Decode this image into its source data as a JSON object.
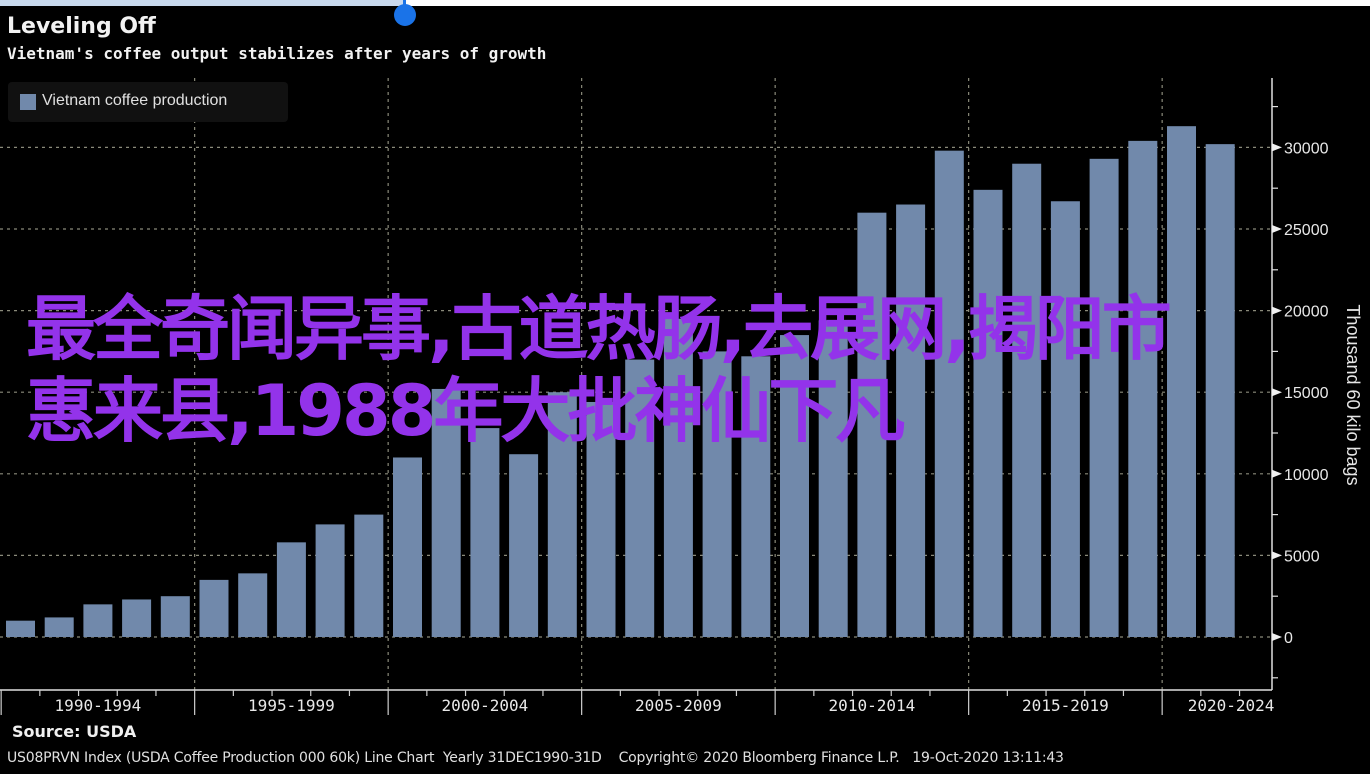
{
  "header": {
    "title": "Leveling Off",
    "subtitle": "Vietnam's coffee output stabilizes after years of growth"
  },
  "legend": {
    "label": "Vietnam coffee production",
    "color": "#7189ab"
  },
  "overlay_text": "最全奇闻异事,古道热肠,去展网,揭阳市惠来县,1988年大批神仙下凡",
  "source": "Source: USDA",
  "footer": {
    "index": "US08PRVN Index (USDA Coffee Production 000 60k) Line Chart  Yearly 31DEC1990-31D",
    "copyright": "Copyright© 2020 Bloomberg Finance L.P.",
    "timestamp": "19-Oct-2020 13:11:43"
  },
  "chart_data": {
    "type": "bar",
    "title": "Leveling Off",
    "subtitle": "Vietnam's coffee output stabilizes after years of growth",
    "xlabel": "",
    "ylabel": "Thousand 60 kilo bags",
    "ylim": [
      -3000,
      34000
    ],
    "yticks": [
      0,
      5000,
      10000,
      15000,
      20000,
      25000,
      30000
    ],
    "ytick_labels": [
      "0",
      "5000",
      "10000",
      "15000",
      "20000",
      "25000",
      "30000"
    ],
    "xtick_groups": [
      "1990-1994",
      "1995-1999",
      "2000-2004",
      "2005-2009",
      "2010-2014",
      "2015-2019",
      "2020-2024"
    ],
    "grid": true,
    "legend_position": "top-left",
    "series": [
      {
        "name": "Vietnam coffee production",
        "color": "#7189ab",
        "categories": [
          "1990",
          "1991",
          "1992",
          "1993",
          "1994",
          "1995",
          "1996",
          "1997",
          "1998",
          "1999",
          "2000",
          "2001",
          "2002",
          "2003",
          "2004",
          "2005",
          "2006",
          "2007",
          "2008",
          "2009",
          "2010",
          "2011",
          "2012",
          "2013",
          "2014",
          "2015",
          "2016",
          "2017",
          "2018",
          "2019",
          "2020",
          "2021"
        ],
        "values": [
          1000,
          1200,
          2000,
          2300,
          2500,
          3500,
          3900,
          5800,
          6900,
          7500,
          11000,
          15200,
          12800,
          11200,
          15000,
          14400,
          17000,
          19500,
          17500,
          17200,
          18500,
          19400,
          26000,
          26500,
          29800,
          27400,
          29000,
          26700,
          29300,
          30400,
          31300,
          30200
        ]
      }
    ]
  }
}
